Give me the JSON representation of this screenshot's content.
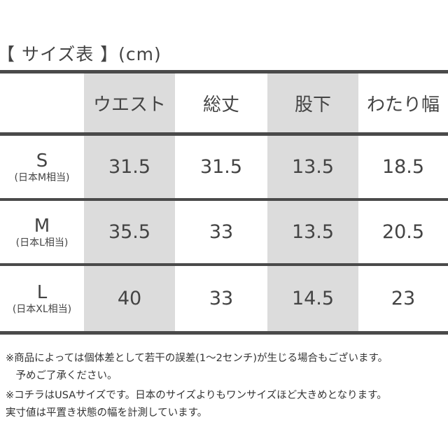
{
  "title": "【 サイズ表 】(cm)",
  "headers": [
    "ウエスト",
    "総丈",
    "股下",
    "わたり幅"
  ],
  "rows": [
    {
      "size": "S",
      "jp": "(日本M相当)",
      "values": [
        "31.5",
        "31.5",
        "13.5",
        "18.5"
      ]
    },
    {
      "size": "M",
      "jp": "(日本L相当)",
      "values": [
        "35.5",
        "33",
        "13.5",
        "20.5"
      ]
    },
    {
      "size": "L",
      "jp": "(日本XL相当)",
      "values": [
        "40",
        "33",
        "14.5",
        "23"
      ]
    }
  ],
  "notes": [
    "※商品によっては個体差として若干の誤差(1〜2センチ)が生じる場合もございます。",
    "　予めご了承ください。",
    "※コチラはUSAサイズです。日本のサイズよりもワンサイズほど大きめとなります。",
    "実寸値は平置き状態の幅を計測しています。"
  ],
  "colors": {
    "text": "#444444",
    "shade": "#dcdcdc",
    "rule": "#4a4a4a"
  }
}
